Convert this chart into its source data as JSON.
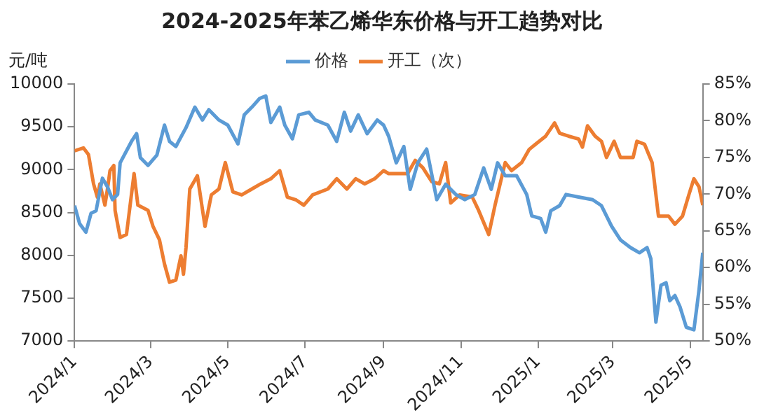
{
  "chart_data": {
    "type": "line",
    "title": "2024-2025年苯乙烯华东价格与开工趋势对比",
    "ylabel": "元/吨",
    "xlim": [
      "2024-01-01",
      "2025-05-11"
    ],
    "xticks": [
      {
        "value": "2024-01-01",
        "label": "2024/1"
      },
      {
        "value": "2024-03-01",
        "label": "2024/3"
      },
      {
        "value": "2024-05-01",
        "label": "2024/5"
      },
      {
        "value": "2024-07-01",
        "label": "2024/7"
      },
      {
        "value": "2024-09-01",
        "label": "2024/9"
      },
      {
        "value": "2024-11-01",
        "label": "2024/11"
      },
      {
        "value": "2025-01-01",
        "label": "2025/1"
      },
      {
        "value": "2025-03-01",
        "label": "2025/3"
      },
      {
        "value": "2025-05-01",
        "label": "2025/5"
      }
    ],
    "ylim": [
      7000,
      10000
    ],
    "yticks": [
      7000,
      7500,
      8000,
      8500,
      9000,
      9500,
      10000
    ],
    "y2lim": [
      50,
      85
    ],
    "y2ticks": [
      {
        "value": 50,
        "label": "50%"
      },
      {
        "value": 55,
        "label": "55%"
      },
      {
        "value": 60,
        "label": "60%"
      },
      {
        "value": 65,
        "label": "65%"
      },
      {
        "value": 70,
        "label": "70%"
      },
      {
        "value": 75,
        "label": "75%"
      },
      {
        "value": 80,
        "label": "80%"
      },
      {
        "value": 85,
        "label": "85%"
      }
    ],
    "grid": false,
    "legend": "top",
    "marker": "none",
    "line_style": "solid",
    "series": [
      {
        "name": "价格",
        "color": "#5b9bd5",
        "x": [
          "2024-01-01",
          "2024-01-05",
          "2024-01-10",
          "2024-01-14",
          "2024-01-18",
          "2024-01-23",
          "2024-01-27",
          "2024-01-31",
          "2024-02-04",
          "2024-02-06",
          "2024-02-15",
          "2024-02-19",
          "2024-02-22",
          "2024-02-28",
          "2024-03-06",
          "2024-03-12",
          "2024-03-16",
          "2024-03-21",
          "2024-03-29",
          "2024-04-05",
          "2024-04-11",
          "2024-04-16",
          "2024-04-24",
          "2024-05-01",
          "2024-05-09",
          "2024-05-14",
          "2024-05-20",
          "2024-05-26",
          "2024-05-31",
          "2024-06-04",
          "2024-06-11",
          "2024-06-15",
          "2024-06-21",
          "2024-06-26",
          "2024-07-04",
          "2024-07-09",
          "2024-07-19",
          "2024-07-26",
          "2024-08-01",
          "2024-08-06",
          "2024-08-12",
          "2024-08-19",
          "2024-08-27",
          "2024-09-01",
          "2024-09-05",
          "2024-09-11",
          "2024-09-17",
          "2024-09-22",
          "2024-09-28",
          "2024-10-05",
          "2024-10-13",
          "2024-10-20",
          "2024-10-28",
          "2024-11-04",
          "2024-11-12",
          "2024-11-19",
          "2024-11-25",
          "2024-11-30",
          "2024-12-06",
          "2024-12-15",
          "2024-12-23",
          "2024-12-27",
          "2025-01-03",
          "2025-01-07",
          "2025-01-11",
          "2025-01-18",
          "2025-01-23",
          "2025-02-02",
          "2025-02-13",
          "2025-02-20",
          "2025-02-28",
          "2025-03-07",
          "2025-03-15",
          "2025-03-22",
          "2025-03-28",
          "2025-03-31",
          "2025-04-04",
          "2025-04-08",
          "2025-04-12",
          "2025-04-15",
          "2025-04-19",
          "2025-04-23",
          "2025-04-28",
          "2025-05-04",
          "2025-05-08",
          "2025-05-11"
        ],
        "values": [
          8580,
          8370,
          8270,
          8490,
          8520,
          8900,
          8800,
          8650,
          8710,
          9080,
          9330,
          9420,
          9140,
          9050,
          9170,
          9520,
          9330,
          9270,
          9490,
          9730,
          9580,
          9700,
          9580,
          9520,
          9300,
          9640,
          9730,
          9830,
          9860,
          9550,
          9730,
          9520,
          9360,
          9640,
          9670,
          9580,
          9520,
          9330,
          9670,
          9450,
          9640,
          9420,
          9580,
          9520,
          9390,
          9080,
          9270,
          8770,
          9080,
          9240,
          8650,
          8830,
          8710,
          8650,
          8710,
          9020,
          8770,
          9080,
          8930,
          8930,
          8710,
          8460,
          8430,
          8270,
          8520,
          8580,
          8710,
          8680,
          8650,
          8580,
          8340,
          8180,
          8090,
          8030,
          8090,
          7960,
          7220,
          7650,
          7680,
          7470,
          7530,
          7400,
          7160,
          7130,
          7590,
          8030
        ]
      },
      {
        "name": "开工（次）",
        "color": "#ed7d31",
        "axis": "y2",
        "x": [
          "2024-01-01",
          "2024-01-08",
          "2024-01-12",
          "2024-01-16",
          "2024-01-19",
          "2024-01-21",
          "2024-01-25",
          "2024-01-27",
          "2024-01-29",
          "2024-02-01",
          "2024-02-02",
          "2024-02-06",
          "2024-02-11",
          "2024-02-17",
          "2024-02-20",
          "2024-02-28",
          "2024-03-03",
          "2024-03-08",
          "2024-03-12",
          "2024-03-16",
          "2024-03-21",
          "2024-03-25",
          "2024-03-27",
          "2024-03-29",
          "2024-04-01",
          "2024-04-07",
          "2024-04-13",
          "2024-04-18",
          "2024-04-24",
          "2024-04-29",
          "2024-05-05",
          "2024-05-12",
          "2024-05-20",
          "2024-05-27",
          "2024-06-04",
          "2024-06-11",
          "2024-06-17",
          "2024-06-24",
          "2024-06-30",
          "2024-07-07",
          "2024-07-19",
          "2024-07-26",
          "2024-08-03",
          "2024-08-10",
          "2024-08-17",
          "2024-08-25",
          "2024-09-01",
          "2024-09-05",
          "2024-09-13",
          "2024-09-20",
          "2024-09-26",
          "2024-10-02",
          "2024-10-09",
          "2024-10-15",
          "2024-10-20",
          "2024-10-24",
          "2024-10-31",
          "2024-11-10",
          "2024-11-15",
          "2024-11-23",
          "2024-11-28",
          "2024-12-06",
          "2024-12-11",
          "2024-12-19",
          "2024-12-25",
          "2024-12-30",
          "2025-01-07",
          "2025-01-14",
          "2025-01-18",
          "2025-01-25",
          "2025-02-02",
          "2025-02-05",
          "2025-02-09",
          "2025-02-15",
          "2025-02-20",
          "2025-02-24",
          "2025-03-02",
          "2025-03-07",
          "2025-03-17",
          "2025-03-20",
          "2025-03-26",
          "2025-04-01",
          "2025-04-06",
          "2025-04-14",
          "2025-04-19",
          "2025-04-25",
          "2025-04-30",
          "2025-05-04",
          "2025-05-08",
          "2025-05-11"
        ],
        "values": [
          75.9,
          76.3,
          75.4,
          71.4,
          69.6,
          71.4,
          68.5,
          70.7,
          73.2,
          73.9,
          67.8,
          64.1,
          64.5,
          72.8,
          68.5,
          67.8,
          65.6,
          63.8,
          60.5,
          58.0,
          58.3,
          61.6,
          59.1,
          62.7,
          70.7,
          72.5,
          65.6,
          69.9,
          70.7,
          74.3,
          70.3,
          69.9,
          70.7,
          71.4,
          72.1,
          73.2,
          69.6,
          69.2,
          68.5,
          69.9,
          70.7,
          72.1,
          70.7,
          72.1,
          71.4,
          72.1,
          73.2,
          72.8,
          72.8,
          72.8,
          74.6,
          73.6,
          71.7,
          71.4,
          74.3,
          68.8,
          69.9,
          69.6,
          67.8,
          64.5,
          68.5,
          74.3,
          73.2,
          74.3,
          76.1,
          76.8,
          77.9,
          79.7,
          78.3,
          77.9,
          77.5,
          76.4,
          79.3,
          77.9,
          77.2,
          75.0,
          77.2,
          75.0,
          75.0,
          77.2,
          76.8,
          74.3,
          67.0,
          67.0,
          65.9,
          67.0,
          69.9,
          72.1,
          71.0,
          68.5
        ]
      }
    ]
  }
}
